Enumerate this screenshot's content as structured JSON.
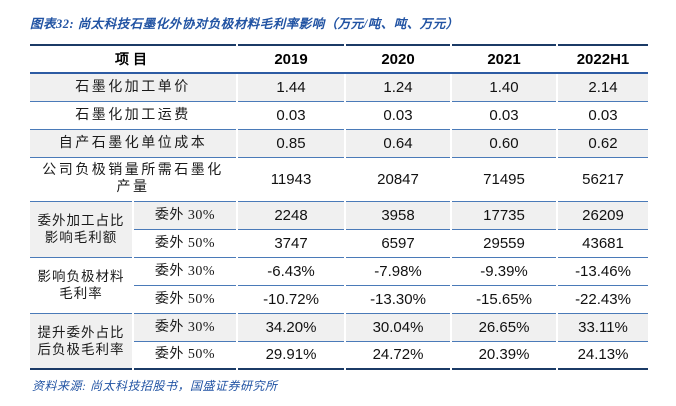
{
  "title": "图表32: 尚太科技石墨化外协对负极材料毛利率影响（万元/吨、吨、万元）",
  "source": "资料来源: 尚太科技招股书，国盛证券研究所",
  "colors": {
    "navy_border": "#1b3a66",
    "divider_blue": "#4a7ab8",
    "header_underline": "#2d5ba3",
    "title_blue": "#2153a3",
    "row_shade": "#f0f0f0"
  },
  "table": {
    "columns": [
      "项目",
      "2019",
      "2020",
      "2021",
      "2022H1"
    ],
    "rows": [
      {
        "label": "石墨化加工单价",
        "values": [
          "1.44",
          "1.24",
          "1.40",
          "2.14"
        ],
        "shaded": true
      },
      {
        "label": "石墨化加工运费",
        "values": [
          "0.03",
          "0.03",
          "0.03",
          "0.03"
        ],
        "shaded": false
      },
      {
        "label": "自产石墨化单位成本",
        "values": [
          "0.85",
          "0.64",
          "0.60",
          "0.62"
        ],
        "shaded": true
      },
      {
        "label": "公司负极销量所需石墨化\n产量",
        "values": [
          "11943",
          "20847",
          "71495",
          "56217"
        ],
        "shaded": false,
        "tall": true
      },
      {
        "group": "委外加工占比\n影响毛利额",
        "group_rows": 2,
        "sub": "委外 30%",
        "values": [
          "2248",
          "3958",
          "17735",
          "26209"
        ],
        "shaded": true
      },
      {
        "sub": "委外 50%",
        "values": [
          "3747",
          "6597",
          "29559",
          "43681"
        ],
        "shaded": false
      },
      {
        "group": "影响负极材料\n毛利率",
        "group_rows": 2,
        "sub": "委外 30%",
        "values": [
          "-6.43%",
          "-7.98%",
          "-9.39%",
          "-13.46%"
        ],
        "shaded": false
      },
      {
        "sub": "委外 50%",
        "values": [
          "-10.72%",
          "-13.30%",
          "-15.65%",
          "-22.43%"
        ],
        "shaded": false
      },
      {
        "group": "提升委外占比\n后负极毛利率",
        "group_rows": 2,
        "sub": "委外 30%",
        "values": [
          "34.20%",
          "30.04%",
          "26.65%",
          "33.11%"
        ],
        "shaded": true
      },
      {
        "sub": "委外 50%",
        "values": [
          "29.91%",
          "24.72%",
          "20.39%",
          "24.13%"
        ],
        "shaded": false
      }
    ]
  }
}
